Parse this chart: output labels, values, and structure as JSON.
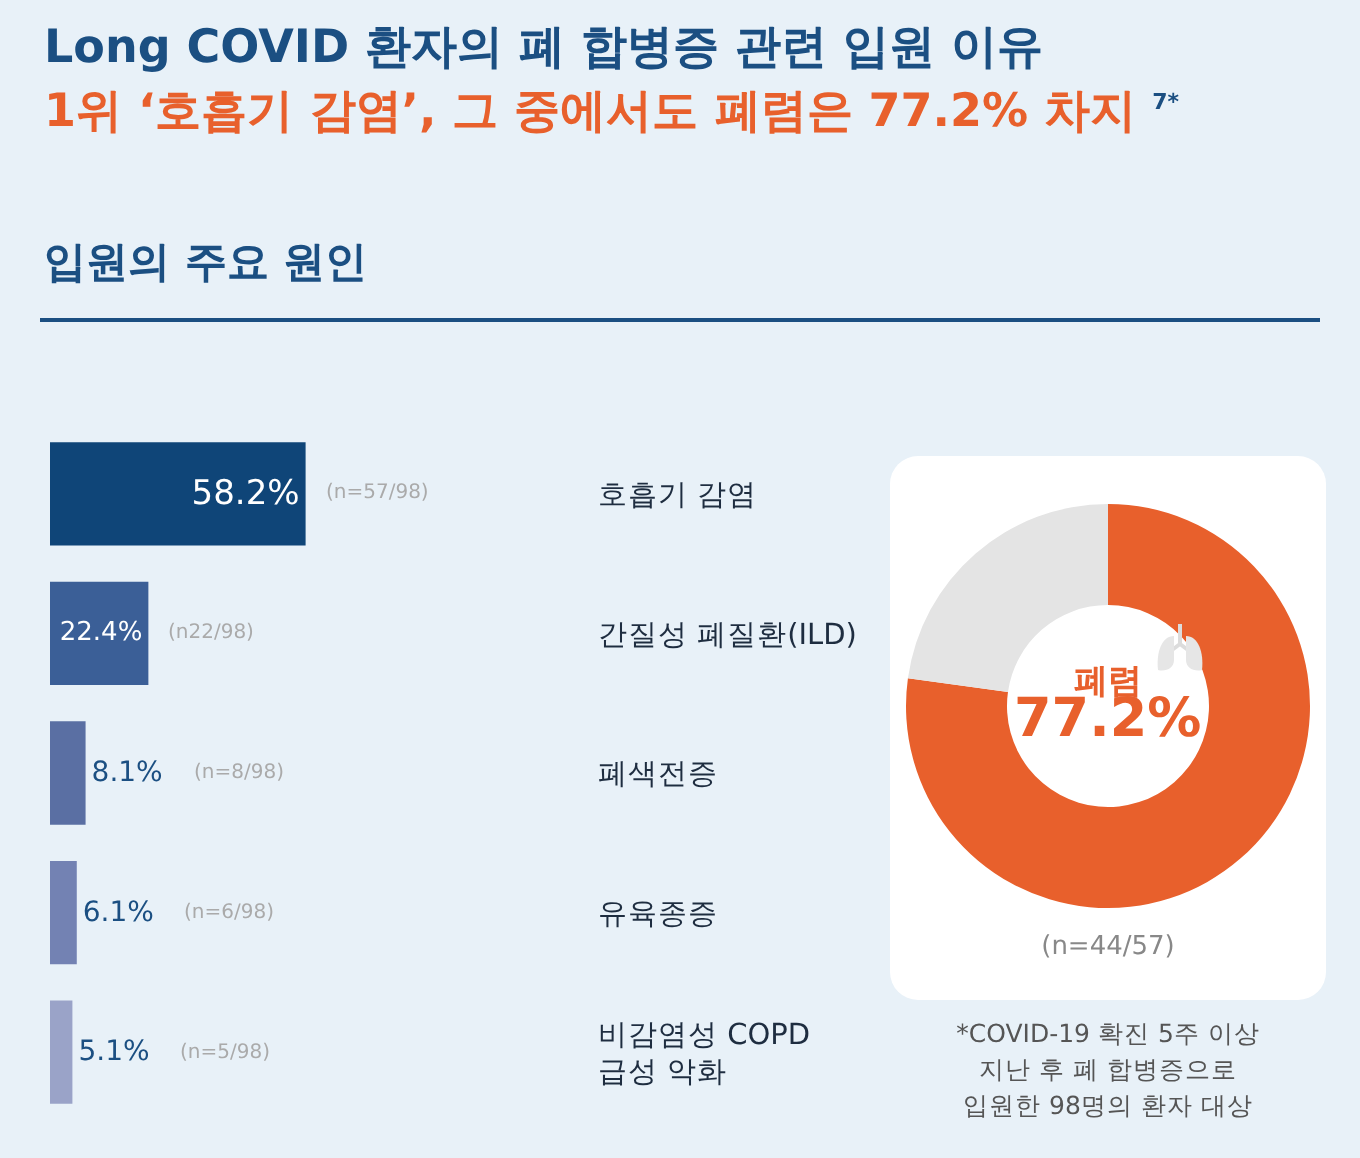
{
  "chart_data": [
    {
      "type": "bar",
      "orientation": "horizontal",
      "title": "Long COVID 환자의 폐 합병증 관련 입원 이유",
      "subtitle": "1위 ‘호흡기 감염’, 그 중에서도 폐렴은 77.2% 차지 $^{7*}$",
      "categories": [
        "호흡기 감염",
        "간질성 폐질환(ILD)",
        "폐색전증",
        "유육종증",
        "비감염성 COPD\n급성 악화"
      ],
      "values": [
        58.2,
        22.4,
        8.1,
        6.1,
        5.1
      ],
      "colors": [
        "#0f4578",
        "#3b5f97",
        "#5a6fa3",
        "#7382b3",
        "#9aa3c8"
      ],
      "value_labels": [
        "58.2%",
        "22.4%",
        "8.1%",
        "6.1%",
        "5.1%"
      ],
      "annotations": [
        "입원의 주요 원인",
        "(n=57/98)",
        "(n22/98)",
        "(n=8/98)",
        "(n=6/98)",
        "(n=5/98)"
      ]
    },
    {
      "type": "donut",
      "categories": [
        "폐렴",
        null
      ],
      "values": [
        77.2,
        22.8
      ],
      "colors": [
        "#e8602c",
        "#e4e4e4"
      ],
      "value_labels": [
        "77.2%",
        null
      ],
      "annotations": [
        "(n=44/57)",
        "*COVID-19 확진 5주 이상\n지난 후 폐 합병증으로\n입원한 98명의 환자 대상"
      ]
    }
  ]
}
